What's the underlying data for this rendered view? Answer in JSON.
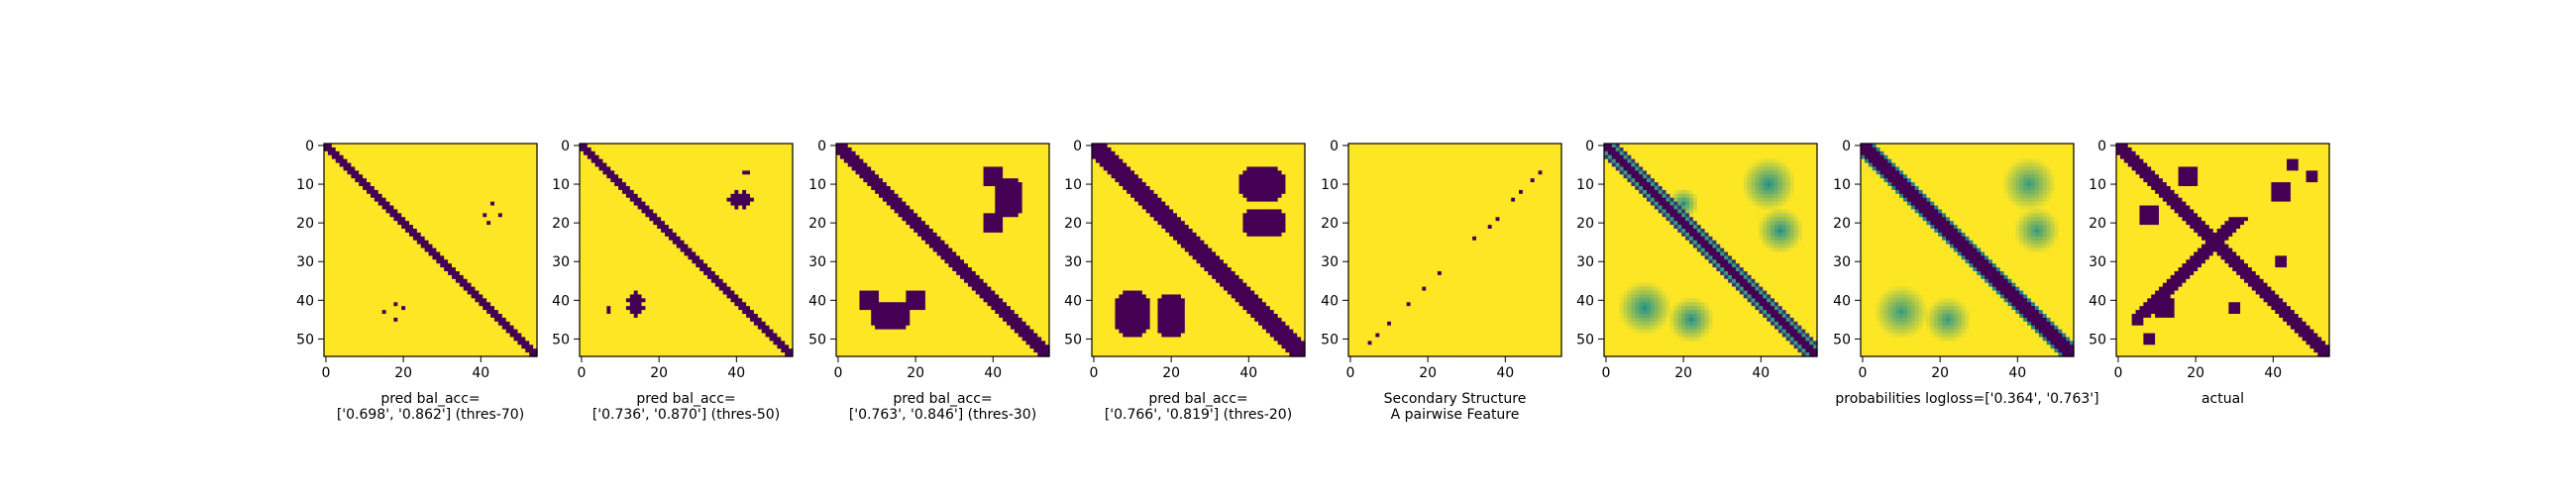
{
  "figure": {
    "colors": {
      "low": "#440154",
      "high": "#fde725",
      "mid": "#21918c",
      "axis": "#000000"
    }
  },
  "chart_data": [
    {
      "type": "heatmap",
      "panel": 1,
      "xlabel": "pred bal_acc=\n['0.698', '0.862'] (thres-70)",
      "x_range": [
        0,
        55
      ],
      "y_range": [
        0,
        55
      ],
      "xticks": [
        "0",
        "20",
        "40"
      ],
      "yticks": [
        "0",
        "10",
        "20",
        "30",
        "40",
        "50"
      ],
      "pattern": "diagonal band with sparse off-diagonal speckles"
    },
    {
      "type": "heatmap",
      "panel": 2,
      "xlabel": "pred bal_acc=\n['0.736', '0.870'] (thres-50)",
      "x_range": [
        0,
        55
      ],
      "y_range": [
        0,
        55
      ],
      "xticks": [
        "0",
        "20",
        "40"
      ],
      "yticks": [
        "0",
        "10",
        "20",
        "30",
        "40",
        "50"
      ],
      "pattern": "diagonal band with small off-diagonal patches"
    },
    {
      "type": "heatmap",
      "panel": 3,
      "xlabel": "pred bal_acc=\n['0.763', '0.846'] (thres-30)",
      "x_range": [
        0,
        55
      ],
      "y_range": [
        0,
        55
      ],
      "xticks": [
        "0",
        "20",
        "40"
      ],
      "yticks": [
        "0",
        "10",
        "20",
        "30",
        "40",
        "50"
      ],
      "pattern": "diagonal band with curved off-diagonal blobs"
    },
    {
      "type": "heatmap",
      "panel": 4,
      "xlabel": "pred bal_acc=\n['0.766', '0.819'] (thres-20)",
      "x_range": [
        0,
        55
      ],
      "y_range": [
        0,
        55
      ],
      "xticks": [
        "0",
        "20",
        "40"
      ],
      "yticks": [
        "0",
        "10",
        "20",
        "30",
        "40",
        "50"
      ],
      "pattern": "thick diagonal band with large off-diagonal blobs"
    },
    {
      "type": "heatmap",
      "panel": 5,
      "xlabel": "Secondary Structure\nA pairwise Feature",
      "x_range": [
        0,
        55
      ],
      "y_range": [
        0,
        55
      ],
      "xticks": [
        "0",
        "20",
        "40"
      ],
      "yticks": [
        "0",
        "10",
        "20",
        "30",
        "40",
        "50"
      ],
      "pattern": "mostly uniform with a few dots along the anti-diagonal"
    },
    {
      "type": "heatmap",
      "panel": 6,
      "xlabel": "",
      "x_range": [
        0,
        55
      ],
      "y_range": [
        0,
        55
      ],
      "xticks": [
        "0",
        "20",
        "40"
      ],
      "yticks": [
        "0",
        "10",
        "20",
        "30",
        "40",
        "50"
      ],
      "pattern": "continuous-valued map with striped diagonal and green off-diagonal regions"
    },
    {
      "type": "heatmap",
      "panel": 7,
      "xlabel": "probabilities logloss=['0.364', '0.763']",
      "x_range": [
        0,
        55
      ],
      "y_range": [
        0,
        55
      ],
      "xticks": [
        "0",
        "20",
        "40"
      ],
      "yticks": [
        "0",
        "10",
        "20",
        "30",
        "40",
        "50"
      ],
      "pattern": "continuous probabilities, dark diagonal band, green off-diagonal regions"
    },
    {
      "type": "heatmap",
      "panel": 8,
      "xlabel": "actual",
      "x_range": [
        0,
        55
      ],
      "y_range": [
        0,
        55
      ],
      "xticks": [
        "0",
        "20",
        "40"
      ],
      "yticks": [
        "0",
        "10",
        "20",
        "30",
        "40",
        "50"
      ],
      "pattern": "binary contact map, diagonal band plus anti-diagonal cross"
    }
  ]
}
